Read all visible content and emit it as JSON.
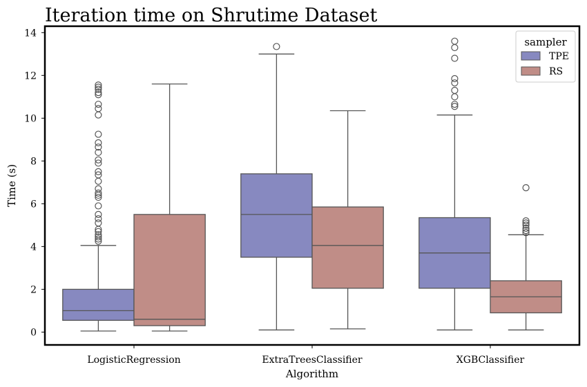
{
  "chart_data": {
    "type": "box",
    "title": "Iteration time on Shrutime Dataset",
    "xlabel": "Algorithm",
    "ylabel": "Time (s)",
    "categories": [
      "LogisticRegression",
      "ExtraTreesClassifier",
      "XGBClassifier"
    ],
    "yticks": [
      0,
      2,
      4,
      6,
      8,
      10,
      12,
      14
    ],
    "ylim": [
      -0.6,
      14.3
    ],
    "grid": false,
    "legend": {
      "title": "sampler",
      "placement": "top-right"
    },
    "series": [
      {
        "name": "TPE",
        "color": "#8789C0",
        "boxes": [
          {
            "category": "LogisticRegression",
            "whislo": 0.05,
            "q1": 0.55,
            "med": 1.0,
            "q3": 2.0,
            "whishi": 4.05,
            "fliers": [
              4.25,
              4.35,
              4.45,
              4.55,
              4.7,
              4.8,
              5.1,
              5.3,
              5.5,
              5.9,
              6.3,
              6.4,
              6.5,
              6.7,
              7.05,
              7.35,
              7.5,
              7.9,
              8.05,
              8.4,
              8.65,
              8.85,
              9.25,
              10.15,
              10.45,
              10.65,
              11.1,
              11.2,
              11.35,
              11.45,
              11.55
            ]
          },
          {
            "category": "ExtraTreesClassifier",
            "whislo": 0.1,
            "q1": 3.5,
            "med": 5.5,
            "q3": 7.4,
            "whishi": 13.0,
            "fliers": [
              13.35
            ]
          },
          {
            "category": "XGBClassifier",
            "whislo": 0.1,
            "q1": 2.05,
            "med": 3.7,
            "q3": 5.35,
            "whishi": 10.15,
            "fliers": [
              10.55,
              10.65,
              11.0,
              11.3,
              11.65,
              11.85,
              12.8,
              13.3,
              13.6
            ]
          }
        ]
      },
      {
        "name": "RS",
        "color": "#C08D87",
        "boxes": [
          {
            "category": "LogisticRegression",
            "whislo": 0.05,
            "q1": 0.3,
            "med": 0.6,
            "q3": 5.5,
            "whishi": 11.6,
            "fliers": []
          },
          {
            "category": "ExtraTreesClassifier",
            "whislo": 0.15,
            "q1": 2.05,
            "med": 4.05,
            "q3": 5.85,
            "whishi": 10.35,
            "fliers": []
          },
          {
            "category": "XGBClassifier",
            "whislo": 0.1,
            "q1": 0.9,
            "med": 1.65,
            "q3": 2.4,
            "whishi": 4.55,
            "fliers": [
              4.65,
              4.75,
              4.85,
              5.0,
              5.1,
              5.2,
              6.75
            ]
          }
        ]
      }
    ]
  }
}
